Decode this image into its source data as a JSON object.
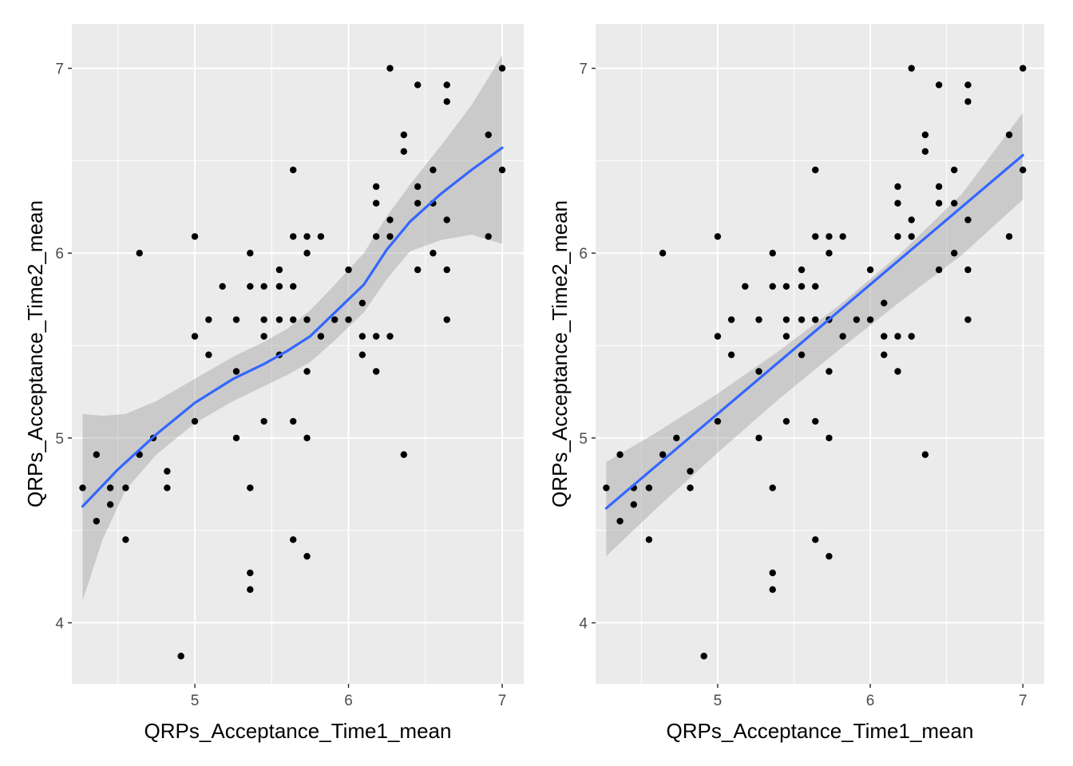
{
  "chart_data": [
    {
      "type": "scatter",
      "smooth": "loess",
      "xlabel": "QRPs_Acceptance_Time1_mean",
      "ylabel": "QRPs_Acceptance_Time2_mean",
      "xlim": [
        4.2,
        7.14
      ],
      "ylim": [
        3.67,
        7.24
      ],
      "x_ticks": [
        5,
        6,
        7
      ],
      "y_ticks": [
        4,
        5,
        6,
        7
      ],
      "grid": true,
      "colors": {
        "panel": "#ebebeb",
        "grid": "#ffffff",
        "point": "#000000",
        "line": "#3366ff",
        "band": "#999999"
      },
      "points": [
        [
          4.27,
          4.73
        ],
        [
          4.36,
          4.91
        ],
        [
          4.36,
          4.55
        ],
        [
          4.45,
          4.73
        ],
        [
          4.45,
          4.64
        ],
        [
          4.55,
          4.73
        ],
        [
          4.55,
          4.45
        ],
        [
          4.64,
          6.0
        ],
        [
          4.64,
          4.91
        ],
        [
          4.73,
          5.0
        ],
        [
          4.82,
          4.82
        ],
        [
          4.82,
          4.73
        ],
        [
          4.91,
          3.82
        ],
        [
          5.0,
          6.09
        ],
        [
          5.0,
          5.55
        ],
        [
          5.0,
          5.09
        ],
        [
          5.09,
          5.64
        ],
        [
          5.09,
          5.45
        ],
        [
          5.18,
          5.82
        ],
        [
          5.27,
          5.64
        ],
        [
          5.27,
          5.36
        ],
        [
          5.27,
          5.0
        ],
        [
          5.36,
          6.0
        ],
        [
          5.36,
          5.82
        ],
        [
          5.36,
          4.73
        ],
        [
          5.36,
          4.27
        ],
        [
          5.36,
          4.18
        ],
        [
          5.45,
          5.82
        ],
        [
          5.45,
          5.64
        ],
        [
          5.45,
          5.55
        ],
        [
          5.45,
          5.09
        ],
        [
          5.55,
          5.91
        ],
        [
          5.55,
          5.82
        ],
        [
          5.55,
          5.64
        ],
        [
          5.55,
          5.45
        ],
        [
          5.64,
          6.45
        ],
        [
          5.64,
          6.09
        ],
        [
          5.64,
          5.82
        ],
        [
          5.64,
          5.64
        ],
        [
          5.64,
          5.09
        ],
        [
          5.64,
          4.45
        ],
        [
          5.73,
          6.09
        ],
        [
          5.73,
          6.0
        ],
        [
          5.73,
          5.64
        ],
        [
          5.73,
          5.36
        ],
        [
          5.73,
          5.0
        ],
        [
          5.73,
          4.36
        ],
        [
          5.82,
          6.09
        ],
        [
          5.82,
          5.55
        ],
        [
          5.91,
          5.64
        ],
        [
          6.0,
          5.91
        ],
        [
          6.0,
          5.64
        ],
        [
          6.09,
          5.73
        ],
        [
          6.09,
          5.55
        ],
        [
          6.09,
          5.45
        ],
        [
          6.18,
          6.36
        ],
        [
          6.18,
          6.27
        ],
        [
          6.18,
          6.09
        ],
        [
          6.18,
          5.55
        ],
        [
          6.18,
          5.36
        ],
        [
          6.27,
          7.0
        ],
        [
          6.27,
          6.18
        ],
        [
          6.27,
          6.09
        ],
        [
          6.27,
          5.55
        ],
        [
          6.36,
          6.64
        ],
        [
          6.36,
          6.55
        ],
        [
          6.36,
          4.91
        ],
        [
          6.45,
          6.91
        ],
        [
          6.45,
          6.36
        ],
        [
          6.45,
          6.27
        ],
        [
          6.45,
          5.91
        ],
        [
          6.55,
          6.45
        ],
        [
          6.55,
          6.27
        ],
        [
          6.55,
          6.0
        ],
        [
          6.64,
          6.91
        ],
        [
          6.64,
          6.82
        ],
        [
          6.64,
          6.18
        ],
        [
          6.64,
          5.91
        ],
        [
          6.64,
          5.64
        ],
        [
          6.91,
          6.64
        ],
        [
          6.91,
          6.09
        ],
        [
          7.0,
          7.0
        ],
        [
          7.0,
          6.45
        ]
      ],
      "fit": [
        [
          4.27,
          4.63
        ],
        [
          4.5,
          4.83
        ],
        [
          4.75,
          5.02
        ],
        [
          5.0,
          5.19
        ],
        [
          5.25,
          5.32
        ],
        [
          5.45,
          5.4
        ],
        [
          5.6,
          5.47
        ],
        [
          5.75,
          5.55
        ],
        [
          5.9,
          5.67
        ],
        [
          6.1,
          5.83
        ],
        [
          6.25,
          6.02
        ],
        [
          6.4,
          6.17
        ],
        [
          6.6,
          6.32
        ],
        [
          6.8,
          6.45
        ],
        [
          7.0,
          6.57
        ]
      ],
      "band_upper": [
        [
          4.27,
          5.13
        ],
        [
          4.4,
          5.12
        ],
        [
          4.55,
          5.13
        ],
        [
          4.75,
          5.2
        ],
        [
          5.0,
          5.32
        ],
        [
          5.25,
          5.44
        ],
        [
          5.45,
          5.52
        ],
        [
          5.6,
          5.59
        ],
        [
          5.75,
          5.69
        ],
        [
          5.9,
          5.82
        ],
        [
          6.1,
          6.0
        ],
        [
          6.25,
          6.2
        ],
        [
          6.4,
          6.37
        ],
        [
          6.6,
          6.58
        ],
        [
          6.8,
          6.8
        ],
        [
          7.0,
          7.07
        ]
      ],
      "band_lower": [
        [
          4.27,
          4.12
        ],
        [
          4.4,
          4.45
        ],
        [
          4.55,
          4.72
        ],
        [
          4.75,
          4.91
        ],
        [
          5.0,
          5.08
        ],
        [
          5.25,
          5.2
        ],
        [
          5.45,
          5.28
        ],
        [
          5.6,
          5.34
        ],
        [
          5.75,
          5.41
        ],
        [
          5.9,
          5.52
        ],
        [
          6.1,
          5.68
        ],
        [
          6.25,
          5.86
        ],
        [
          6.4,
          6.01
        ],
        [
          6.6,
          6.07
        ],
        [
          6.8,
          6.1
        ],
        [
          7.0,
          6.05
        ]
      ]
    },
    {
      "type": "scatter",
      "smooth": "linear",
      "xlabel": "QRPs_Acceptance_Time1_mean",
      "ylabel": "QRPs_Acceptance_Time2_mean",
      "xlim": [
        4.2,
        7.14
      ],
      "ylim": [
        3.67,
        7.24
      ],
      "x_ticks": [
        5,
        6,
        7
      ],
      "y_ticks": [
        4,
        5,
        6,
        7
      ],
      "grid": true,
      "colors": {
        "panel": "#ebebeb",
        "grid": "#ffffff",
        "point": "#000000",
        "line": "#3366ff",
        "band": "#999999"
      },
      "points": [
        [
          4.27,
          4.73
        ],
        [
          4.36,
          4.91
        ],
        [
          4.36,
          4.55
        ],
        [
          4.45,
          4.73
        ],
        [
          4.45,
          4.64
        ],
        [
          4.55,
          4.73
        ],
        [
          4.55,
          4.45
        ],
        [
          4.64,
          6.0
        ],
        [
          4.64,
          4.91
        ],
        [
          4.73,
          5.0
        ],
        [
          4.82,
          4.82
        ],
        [
          4.82,
          4.73
        ],
        [
          4.91,
          3.82
        ],
        [
          5.0,
          6.09
        ],
        [
          5.0,
          5.55
        ],
        [
          5.0,
          5.09
        ],
        [
          5.09,
          5.64
        ],
        [
          5.09,
          5.45
        ],
        [
          5.18,
          5.82
        ],
        [
          5.27,
          5.64
        ],
        [
          5.27,
          5.36
        ],
        [
          5.27,
          5.0
        ],
        [
          5.36,
          6.0
        ],
        [
          5.36,
          5.82
        ],
        [
          5.36,
          4.73
        ],
        [
          5.36,
          4.27
        ],
        [
          5.36,
          4.18
        ],
        [
          5.45,
          5.82
        ],
        [
          5.45,
          5.64
        ],
        [
          5.45,
          5.55
        ],
        [
          5.45,
          5.09
        ],
        [
          5.55,
          5.91
        ],
        [
          5.55,
          5.82
        ],
        [
          5.55,
          5.64
        ],
        [
          5.55,
          5.45
        ],
        [
          5.64,
          6.45
        ],
        [
          5.64,
          6.09
        ],
        [
          5.64,
          5.82
        ],
        [
          5.64,
          5.64
        ],
        [
          5.64,
          5.09
        ],
        [
          5.64,
          4.45
        ],
        [
          5.73,
          6.09
        ],
        [
          5.73,
          6.0
        ],
        [
          5.73,
          5.64
        ],
        [
          5.73,
          5.36
        ],
        [
          5.73,
          5.0
        ],
        [
          5.73,
          4.36
        ],
        [
          5.82,
          6.09
        ],
        [
          5.82,
          5.55
        ],
        [
          5.91,
          5.64
        ],
        [
          6.0,
          5.91
        ],
        [
          6.0,
          5.64
        ],
        [
          6.09,
          5.73
        ],
        [
          6.09,
          5.55
        ],
        [
          6.09,
          5.45
        ],
        [
          6.18,
          6.36
        ],
        [
          6.18,
          6.27
        ],
        [
          6.18,
          6.09
        ],
        [
          6.18,
          5.55
        ],
        [
          6.18,
          5.36
        ],
        [
          6.27,
          7.0
        ],
        [
          6.27,
          6.18
        ],
        [
          6.27,
          6.09
        ],
        [
          6.27,
          5.55
        ],
        [
          6.36,
          6.64
        ],
        [
          6.36,
          6.55
        ],
        [
          6.36,
          4.91
        ],
        [
          6.45,
          6.91
        ],
        [
          6.45,
          6.36
        ],
        [
          6.45,
          6.27
        ],
        [
          6.45,
          5.91
        ],
        [
          6.55,
          6.45
        ],
        [
          6.55,
          6.27
        ],
        [
          6.55,
          6.0
        ],
        [
          6.64,
          6.91
        ],
        [
          6.64,
          6.82
        ],
        [
          6.64,
          6.18
        ],
        [
          6.64,
          5.91
        ],
        [
          6.64,
          5.64
        ],
        [
          6.91,
          6.64
        ],
        [
          6.91,
          6.09
        ],
        [
          7.0,
          7.0
        ],
        [
          7.0,
          6.45
        ]
      ],
      "fit": [
        [
          4.27,
          4.62
        ],
        [
          7.0,
          6.53
        ]
      ],
      "band_upper": [
        [
          4.27,
          4.87
        ],
        [
          4.6,
          5.03
        ],
        [
          5.0,
          5.24
        ],
        [
          5.4,
          5.47
        ],
        [
          5.8,
          5.72
        ],
        [
          6.2,
          6.0
        ],
        [
          6.6,
          6.32
        ],
        [
          7.0,
          6.76
        ]
      ],
      "band_lower": [
        [
          4.27,
          4.36
        ],
        [
          4.6,
          4.62
        ],
        [
          5.0,
          4.92
        ],
        [
          5.4,
          5.21
        ],
        [
          5.8,
          5.48
        ],
        [
          6.2,
          5.74
        ],
        [
          6.6,
          5.99
        ],
        [
          7.0,
          6.29
        ]
      ]
    }
  ]
}
